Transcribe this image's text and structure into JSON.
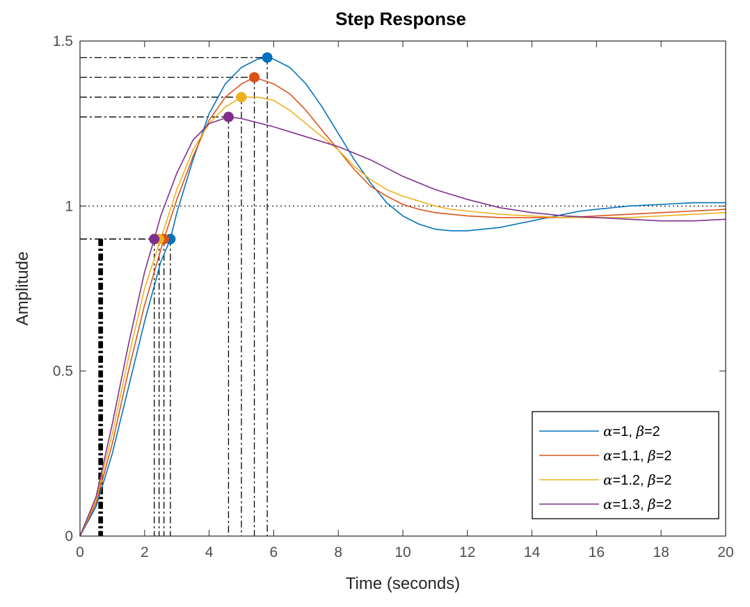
{
  "chart_data": {
    "type": "line",
    "title": "Step Response",
    "xlabel": "Time (seconds)",
    "ylabel": "Amplitude",
    "xlim": [
      0,
      20
    ],
    "ylim": [
      0,
      1.5
    ],
    "xticks": [
      0,
      2,
      4,
      6,
      8,
      10,
      12,
      14,
      16,
      18,
      20
    ],
    "yticks": [
      0,
      0.5,
      1,
      1.5
    ],
    "xtick_labels": [
      "0",
      "2",
      "4",
      "6",
      "8",
      "10",
      "12",
      "14",
      "16",
      "18",
      "20"
    ],
    "ytick_labels": [
      "0",
      "0.5",
      "1",
      "1.5"
    ],
    "steady_state": 1,
    "legend_position": "bottom-right",
    "series": [
      {
        "name": "α=1, β=2",
        "alpha_text": "α",
        "alpha_val": "=1, ",
        "beta_text": "β",
        "beta_val": "=2",
        "color": "#0072BD",
        "x": [
          0,
          0.5,
          1,
          1.5,
          2,
          2.5,
          2.8,
          3,
          3.5,
          4,
          4.5,
          5,
          5.5,
          5.8,
          6,
          6.5,
          7,
          7.5,
          8,
          8.5,
          9,
          9.5,
          10,
          10.5,
          11,
          11.5,
          12,
          12.5,
          13,
          13.5,
          14,
          14.5,
          15,
          15.5,
          16,
          17,
          18,
          19,
          20
        ],
        "y": [
          0,
          0.09,
          0.25,
          0.45,
          0.65,
          0.83,
          0.9,
          0.98,
          1.14,
          1.28,
          1.37,
          1.42,
          1.445,
          1.45,
          1.445,
          1.42,
          1.37,
          1.3,
          1.22,
          1.14,
          1.07,
          1.01,
          0.97,
          0.945,
          0.93,
          0.925,
          0.925,
          0.93,
          0.935,
          0.945,
          0.955,
          0.965,
          0.975,
          0.985,
          0.99,
          1.0,
          1.005,
          1.01,
          1.01
        ],
        "rise": {
          "t": 2.8,
          "y": 0.9
        },
        "peak": {
          "t": 5.8,
          "y": 1.45
        },
        "settle": 0.6
      },
      {
        "name": "α=1.1, β=2",
        "alpha_text": "α",
        "alpha_val": "=1.1, ",
        "beta_text": "β",
        "beta_val": "=2",
        "color": "#D95319",
        "x": [
          0,
          0.5,
          1,
          1.5,
          2,
          2.6,
          3,
          3.5,
          4,
          4.5,
          5,
          5.4,
          6,
          6.5,
          7,
          7.5,
          8,
          8.5,
          9,
          9.5,
          10,
          10.5,
          11,
          11.5,
          12,
          13,
          14,
          15,
          16,
          17,
          18,
          19,
          20
        ],
        "y": [
          0,
          0.1,
          0.28,
          0.5,
          0.7,
          0.9,
          1.02,
          1.15,
          1.26,
          1.33,
          1.37,
          1.39,
          1.37,
          1.34,
          1.29,
          1.23,
          1.17,
          1.11,
          1.06,
          1.03,
          1.005,
          0.99,
          0.98,
          0.975,
          0.97,
          0.965,
          0.965,
          0.965,
          0.97,
          0.975,
          0.98,
          0.985,
          0.99
        ],
        "rise": {
          "t": 2.6,
          "y": 0.9
        },
        "peak": {
          "t": 5.4,
          "y": 1.39
        },
        "settle": 0.62
      },
      {
        "name": "α=1.2, β=2",
        "alpha_text": "α",
        "alpha_val": "=1.2, ",
        "beta_text": "β",
        "beta_val": "=2",
        "color": "#EDB120",
        "x": [
          0,
          0.5,
          1,
          1.5,
          2,
          2.5,
          3,
          3.5,
          4,
          4.5,
          5,
          5.5,
          6,
          6.5,
          7,
          7.5,
          8,
          8.5,
          9,
          9.5,
          10,
          10.5,
          11,
          11.5,
          12,
          13,
          14,
          15,
          16,
          17,
          18,
          19,
          20
        ],
        "y": [
          0,
          0.11,
          0.31,
          0.54,
          0.75,
          0.9,
          1.05,
          1.17,
          1.25,
          1.3,
          1.33,
          1.33,
          1.32,
          1.29,
          1.25,
          1.21,
          1.17,
          1.12,
          1.08,
          1.05,
          1.03,
          1.015,
          1.0,
          0.99,
          0.985,
          0.975,
          0.97,
          0.965,
          0.965,
          0.965,
          0.97,
          0.975,
          0.98
        ],
        "rise": {
          "t": 2.45,
          "y": 0.9
        },
        "peak": {
          "t": 5.0,
          "y": 1.33
        },
        "settle": 0.65
      },
      {
        "name": "α=1.3, β=2",
        "alpha_text": "α",
        "alpha_val": "=1.3, ",
        "beta_text": "β",
        "beta_val": "=2",
        "color": "#7E2F8E",
        "x": [
          0,
          0.5,
          1,
          1.5,
          2,
          2.3,
          2.5,
          3,
          3.5,
          4,
          4.6,
          5,
          6,
          7,
          8,
          9,
          10,
          11,
          12,
          13,
          14,
          15,
          16,
          17,
          18,
          19,
          20
        ],
        "y": [
          0,
          0.12,
          0.34,
          0.58,
          0.8,
          0.9,
          0.97,
          1.1,
          1.2,
          1.25,
          1.27,
          1.265,
          1.24,
          1.21,
          1.18,
          1.14,
          1.09,
          1.05,
          1.02,
          0.995,
          0.98,
          0.97,
          0.965,
          0.96,
          0.955,
          0.955,
          0.96
        ],
        "rise": {
          "t": 2.3,
          "y": 0.9
        },
        "peak": {
          "t": 4.6,
          "y": 1.27
        },
        "settle": 0.68
      }
    ]
  }
}
